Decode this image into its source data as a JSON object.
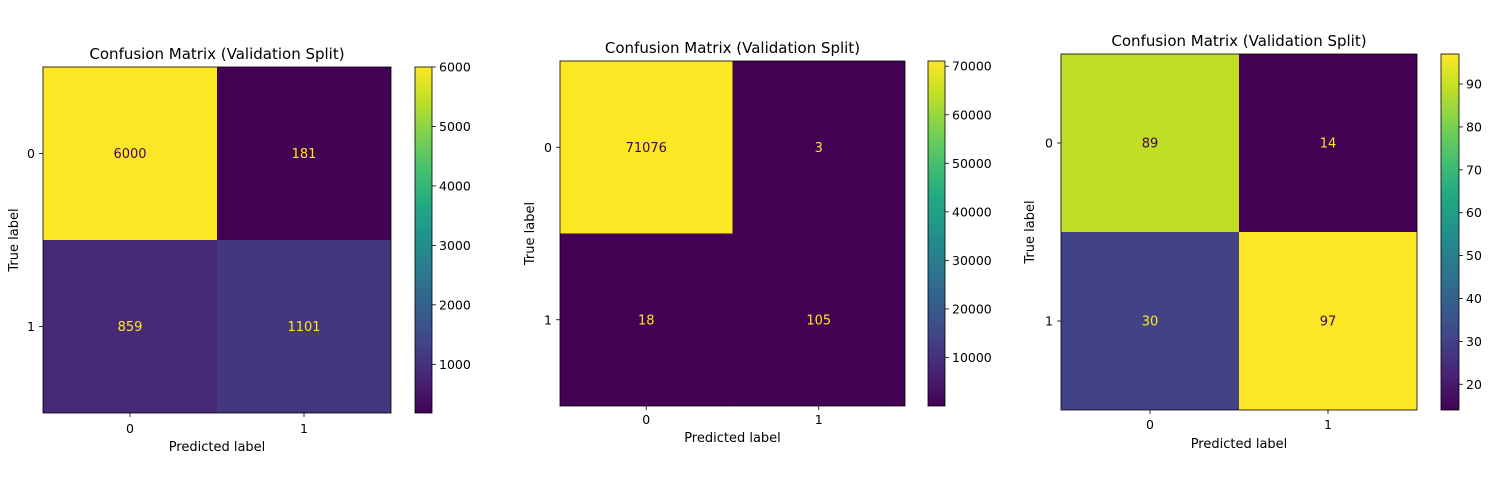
{
  "chart_data": [
    {
      "type": "heatmap",
      "title": "Confusion Matrix (Validation Split)",
      "xlabel": "Predicted label",
      "ylabel": "True label",
      "x_categories": [
        "0",
        "1"
      ],
      "y_categories": [
        "0",
        "1"
      ],
      "matrix": [
        [
          6000,
          181
        ],
        [
          859,
          1101
        ]
      ],
      "colormap": "viridis",
      "colorbar": {
        "vmin": 181,
        "vmax": 6000,
        "ticks": [
          1000,
          2000,
          3000,
          4000,
          5000,
          6000
        ]
      },
      "text_colors": {
        "on_dark": "#fde725",
        "on_light": "#440154"
      }
    },
    {
      "type": "heatmap",
      "title": "Confusion Matrix (Validation Split)",
      "xlabel": "Predicted label",
      "ylabel": "True label",
      "x_categories": [
        "0",
        "1"
      ],
      "y_categories": [
        "0",
        "1"
      ],
      "matrix": [
        [
          71076,
          3
        ],
        [
          18,
          105
        ]
      ],
      "colormap": "viridis",
      "colorbar": {
        "vmin": 3,
        "vmax": 71076,
        "ticks": [
          10000,
          20000,
          30000,
          40000,
          50000,
          60000,
          70000
        ]
      },
      "text_colors": {
        "on_dark": "#fde725",
        "on_light": "#440154"
      }
    },
    {
      "type": "heatmap",
      "title": "Confusion Matrix (Validation Split)",
      "xlabel": "Predicted label",
      "ylabel": "True label",
      "x_categories": [
        "0",
        "1"
      ],
      "y_categories": [
        "0",
        "1"
      ],
      "matrix": [
        [
          89,
          14
        ],
        [
          30,
          97
        ]
      ],
      "colormap": "viridis",
      "colorbar": {
        "vmin": 14,
        "vmax": 97,
        "ticks": [
          20,
          30,
          40,
          50,
          60,
          70,
          80,
          90
        ]
      },
      "text_colors": {
        "on_dark": "#fde725",
        "on_light": "#440154"
      }
    }
  ]
}
